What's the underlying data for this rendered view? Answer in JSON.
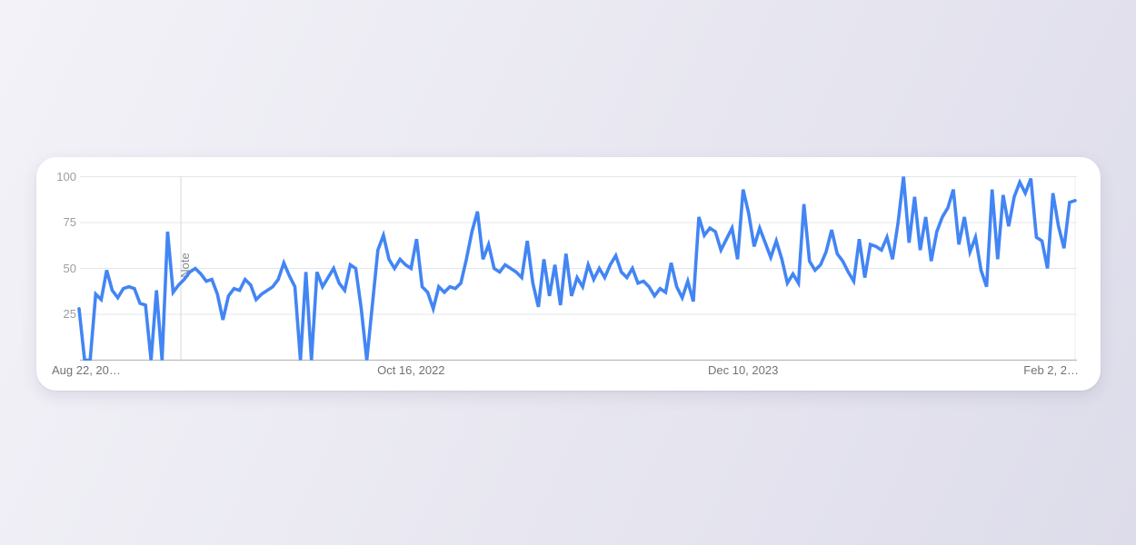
{
  "card": {
    "kind": "trends-chart-card"
  },
  "chart_data": {
    "type": "line",
    "title": "",
    "xlabel": "",
    "ylabel": "",
    "ylim": [
      0,
      100
    ],
    "grid": "horizontal",
    "n_points": 181,
    "y_ticks": [
      100,
      75,
      50,
      25
    ],
    "x_ticks": [
      {
        "label": "Aug 22, 20…",
        "position": 0
      },
      {
        "label": "Oct 16, 2022",
        "position": 60
      },
      {
        "label": "Dec 10, 2023",
        "position": 120
      },
      {
        "label": "Feb 2, 2…",
        "position": 180
      }
    ],
    "annotation": {
      "label": "Note",
      "position": 18.4
    },
    "series": [
      {
        "name": "interest-over-time",
        "color": "#4285f4",
        "values": [
          28,
          0,
          0,
          36,
          33,
          49,
          38,
          34,
          39,
          40,
          39,
          31,
          30,
          0,
          38,
          0,
          70,
          37,
          41,
          44,
          48,
          50,
          47,
          43,
          44,
          36,
          22,
          35,
          39,
          38,
          44,
          41,
          33,
          36,
          38,
          40,
          44,
          53,
          46,
          40,
          0,
          48,
          0,
          48,
          40,
          45,
          50,
          42,
          38,
          52,
          50,
          28,
          0,
          30,
          60,
          68,
          55,
          50,
          55,
          52,
          50,
          66,
          40,
          37,
          28,
          40,
          37,
          40,
          39,
          42,
          55,
          70,
          81,
          55,
          63,
          50,
          48,
          52,
          50,
          48,
          45,
          65,
          42,
          29,
          55,
          35,
          52,
          30,
          58,
          35,
          45,
          40,
          52,
          44,
          50,
          45,
          52,
          57,
          48,
          45,
          50,
          42,
          43,
          40,
          35,
          39,
          37,
          53,
          40,
          34,
          43,
          32,
          78,
          68,
          72,
          70,
          60,
          66,
          72,
          55,
          93,
          80,
          62,
          72,
          64,
          56,
          65,
          55,
          42,
          47,
          42,
          85,
          54,
          49,
          52,
          59,
          71,
          58,
          54,
          48,
          43,
          66,
          45,
          63,
          62,
          60,
          67,
          55,
          75,
          100,
          64,
          89,
          60,
          78,
          54,
          70,
          78,
          83,
          93,
          63,
          78,
          59,
          67,
          49,
          40,
          93,
          55,
          90,
          73,
          89,
          97,
          91,
          99,
          67,
          65,
          50,
          91,
          73,
          61,
          86,
          87
        ]
      }
    ],
    "colors": {
      "line": "#4285f4",
      "grid": "#e3e5e8",
      "edge_grid": "#ebedef",
      "axis": "#b7babd",
      "y_label": "#9a9ea3",
      "x_label": "#6f7377",
      "note_text": "#80868b",
      "note_line": "#d5d7da",
      "card_bg": "#ffffff"
    }
  }
}
